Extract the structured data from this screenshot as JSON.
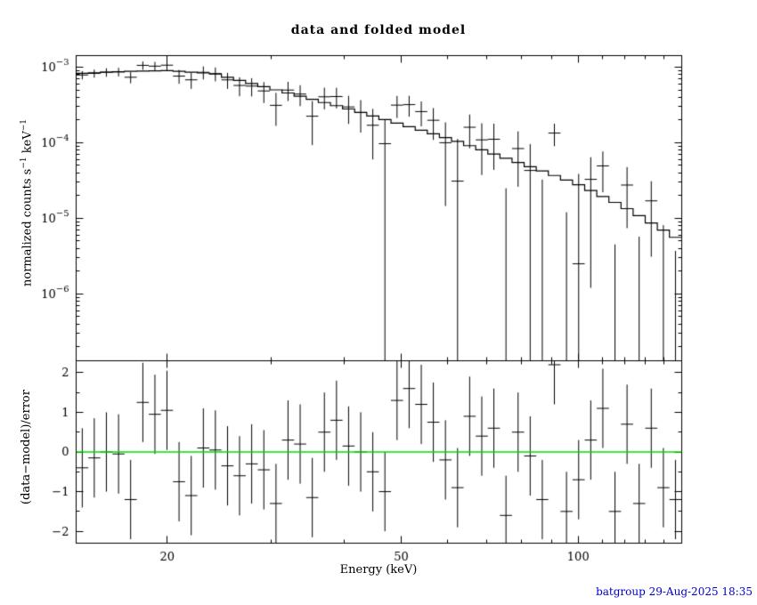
{
  "footer_note": "batgroup 29-Aug-2025 18:35",
  "colors": {
    "frame": "#000000",
    "data": "#000000",
    "model": "#000000",
    "zero_line": "#00dd00",
    "footer": "#0000cc",
    "title": "#000000",
    "background": "#ffffff"
  },
  "chart_data": {
    "type": "line",
    "subtype": "xspec-spectrum-with-errorbars-and-residuals",
    "title": "data and folded model",
    "xlabel": "Energy (keV)",
    "ylabel_top": "normalized counts s−1 keV−1",
    "ylabel_top_parts": {
      "pre": "normalized counts s",
      "sup1": "−1",
      "mid": " keV",
      "sup2": "−1"
    },
    "ylabel_bottom": "(data−model)/error",
    "x_scale": "log",
    "y_scale_top": "log",
    "y_scale_bottom": "linear",
    "xlim": [
      14,
      150
    ],
    "ylim_top": [
      1.3e-07,
      0.00142
    ],
    "ylim_bottom": [
      -2.3,
      2.3
    ],
    "grid": false,
    "legend": false,
    "x_major_ticks": [
      20,
      50,
      100
    ],
    "x_major_tick_labels": [
      "20",
      "50",
      "100"
    ],
    "x_minor_ticks": [
      30,
      40,
      60,
      70,
      80,
      90,
      110,
      120,
      130,
      140
    ],
    "y_top_tick_exponents": [
      -3,
      -4,
      -5,
      -6
    ],
    "y_bottom_ticks": [
      -2,
      -1,
      0,
      1,
      2
    ],
    "y_bottom_tick_labels": [
      "−2",
      "−1",
      "0",
      "1",
      "2"
    ],
    "zero_line_y": 0,
    "x_bin_edges": [
      14.0,
      14.68,
      15.39,
      16.14,
      16.92,
      17.75,
      18.61,
      19.51,
      20.46,
      21.45,
      22.5,
      23.59,
      24.73,
      25.93,
      27.19,
      28.51,
      29.9,
      31.35,
      32.87,
      34.47,
      36.14,
      37.9,
      39.74,
      41.67,
      43.69,
      45.81,
      48.04,
      50.37,
      52.82,
      55.38,
      58.07,
      60.89,
      63.84,
      66.94,
      70.19,
      73.6,
      77.17,
      80.92,
      84.85,
      88.97,
      93.29,
      97.82,
      102.57,
      107.55,
      112.77,
      118.25,
      123.99,
      130.01,
      136.32,
      142.94,
      150.0
    ],
    "x": [
      14.34,
      15.03,
      15.76,
      16.53,
      17.33,
      18.18,
      19.06,
      19.98,
      20.95,
      21.97,
      23.04,
      24.15,
      25.33,
      26.55,
      27.84,
      29.2,
      30.62,
      32.1,
      33.66,
      35.3,
      37.01,
      38.81,
      40.69,
      42.67,
      44.74,
      46.91,
      49.19,
      51.58,
      54.09,
      56.71,
      59.46,
      62.35,
      65.37,
      68.55,
      71.87,
      75.37,
      79.02,
      82.86,
      86.88,
      91.1,
      95.52,
      100.18,
      105.04,
      110.14,
      115.49,
      121.09,
      126.96,
      133.13,
      139.59,
      146.37
    ],
    "series": [
      {
        "name": "folded model",
        "style": "step-line",
        "panel": "top",
        "values": [
          0.000827,
          0.000841,
          0.000856,
          0.000871,
          0.000882,
          0.000888,
          0.000894,
          0.0009,
          0.000879,
          0.000858,
          0.000837,
          0.00081,
          0.000735,
          0.000668,
          0.000607,
          0.000551,
          0.0005,
          0.000455,
          0.000413,
          0.000375,
          0.00034,
          0.000309,
          0.000279,
          0.000251,
          0.000225,
          0.000202,
          0.000182,
          0.000163,
          0.000146,
          0.000131,
          0.000117,
          0.000104,
          9.13e-05,
          8.04e-05,
          7.08e-05,
          6.23e-05,
          5.48e-05,
          4.82e-05,
          4.22e-05,
          3.68e-05,
          3.2e-05,
          2.78e-05,
          2.33e-05,
          1.94e-05,
          1.62e-05,
          1.34e-05,
          1.08e-05,
          8.68e-06,
          6.96e-06,
          5.59e-06
        ]
      },
      {
        "name": "data",
        "style": "errorbar",
        "panel": "top",
        "values": [
          0.000787,
          0.000826,
          0.000856,
          0.000865,
          0.000734,
          0.001055,
          0.00103,
          0.001061,
          0.00076,
          0.000679,
          0.000854,
          0.000819,
          0.000678,
          0.000572,
          0.000561,
          0.000484,
          0.000312,
          0.000497,
          0.00044,
          0.000224,
          0.000405,
          0.000408,
          0.000297,
          0.000251,
          0.00017,
          9.7e-05,
          0.000314,
          0.000319,
          0.000258,
          0.000198,
          9.99e-05,
          3.1e-05,
          0.00016,
          0.000109,
          0.000111,
          -3.74e-05,
          8.36e-05,
          4.29e-05,
          -1.6e-05,
          0.000134,
          -2.8e-05,
          2.5e-06,
          3.27e-05,
          4.93e-05,
          -1.9e-05,
          2.75e-05,
          -1.1e-05,
          1.7e-05,
          -3.4e-06,
          -5.8e-06
        ],
        "errors": [
          9.9e-05,
          0.000101,
          0.000111,
          0.000113,
          0.000123,
          0.000133,
          0.000143,
          0.000153,
          0.000158,
          0.000163,
          0.000167,
          0.00017,
          0.000162,
          0.00016,
          0.000152,
          0.000149,
          0.000145,
          0.000141,
          0.000136,
          0.000131,
          0.000129,
          0.000124,
          0.00012,
          0.000115,
          0.00011,
          0.000105,
          0.000102,
          9.78e-05,
          9.34e-05,
          8.91e-05,
          8.54e-05,
          8.11e-05,
          7.58e-05,
          7.16e-05,
          6.73e-05,
          6.23e-05,
          5.75e-05,
          5.3e-05,
          4.85e-05,
          4.42e-05,
          4e-05,
          3.61e-05,
          3.15e-05,
          2.72e-05,
          2.35e-05,
          2.01e-05,
          1.67e-05,
          1.39e-05,
          1.15e-05,
          9.5e-06
        ]
      },
      {
        "name": "residuals (data−model)/error",
        "style": "errorbar",
        "panel": "bottom",
        "values": [
          -0.4,
          -0.15,
          0.0,
          -0.05,
          -1.2,
          1.25,
          0.95,
          1.05,
          -0.75,
          -1.1,
          0.1,
          0.05,
          -0.35,
          -0.6,
          -0.3,
          -0.45,
          -1.3,
          0.3,
          0.2,
          -1.15,
          0.5,
          0.8,
          0.15,
          0.0,
          -0.5,
          -1.0,
          1.3,
          1.6,
          1.2,
          0.75,
          -0.2,
          -0.9,
          0.9,
          0.4,
          0.6,
          -1.6,
          0.5,
          -0.1,
          -1.2,
          2.2,
          -1.5,
          -0.7,
          0.3,
          1.1,
          -1.5,
          0.7,
          -1.3,
          0.6,
          -0.9,
          -1.2
        ],
        "error": 1.0
      }
    ]
  }
}
